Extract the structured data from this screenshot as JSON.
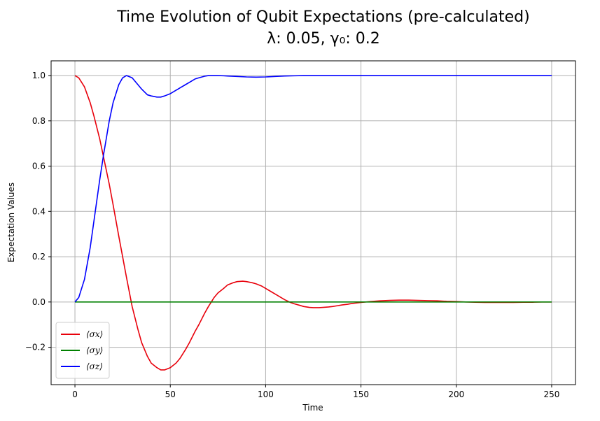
{
  "chart_data": {
    "type": "line",
    "title": "Time Evolution of Qubit Expectations (pre-calculated)",
    "subtitle": "λ: 0.05, γ₀: 0.2",
    "xlabel": "Time",
    "ylabel": "Expectation Values",
    "xlim": [
      -12.5,
      262.5
    ],
    "ylim": [
      -0.365,
      1.065
    ],
    "xticks": [
      0,
      50,
      100,
      150,
      200,
      250
    ],
    "xtick_labels": [
      "0",
      "50",
      "100",
      "150",
      "200",
      "250"
    ],
    "yticks": [
      -0.2,
      0.0,
      0.2,
      0.4,
      0.6,
      0.8,
      1.0
    ],
    "ytick_labels": [
      "−0.2",
      "0.0",
      "0.2",
      "0.4",
      "0.6",
      "0.8",
      "1.0"
    ],
    "grid": true,
    "legend_position": "lower-left",
    "series": [
      {
        "name": "⟨σx⟩",
        "color": "#e8000b",
        "x": [
          0,
          2,
          5,
          8,
          10,
          13,
          15,
          18,
          20,
          23,
          25,
          27,
          30,
          33,
          35,
          38,
          40,
          43,
          45,
          47,
          50,
          53,
          55,
          58,
          60,
          63,
          65,
          68,
          70,
          73,
          75,
          78,
          80,
          83,
          85,
          88,
          90,
          93,
          95,
          98,
          100,
          103,
          105,
          108,
          110,
          113,
          115,
          118,
          120,
          123,
          125,
          128,
          130,
          133,
          135,
          138,
          140,
          143,
          145,
          148,
          150,
          155,
          160,
          165,
          170,
          175,
          180,
          185,
          190,
          195,
          200,
          205,
          210,
          215,
          220,
          225,
          230,
          235,
          240,
          245,
          250
        ],
        "y": [
          1.0,
          0.99,
          0.95,
          0.88,
          0.82,
          0.72,
          0.64,
          0.52,
          0.43,
          0.29,
          0.2,
          0.11,
          -0.02,
          -0.12,
          -0.18,
          -0.24,
          -0.27,
          -0.29,
          -0.3,
          -0.3,
          -0.29,
          -0.27,
          -0.25,
          -0.21,
          -0.18,
          -0.13,
          -0.1,
          -0.05,
          -0.02,
          0.02,
          0.04,
          0.06,
          0.075,
          0.085,
          0.09,
          0.092,
          0.09,
          0.085,
          0.08,
          0.07,
          0.06,
          0.045,
          0.035,
          0.02,
          0.01,
          -0.002,
          -0.008,
          -0.015,
          -0.02,
          -0.024,
          -0.025,
          -0.025,
          -0.024,
          -0.022,
          -0.02,
          -0.016,
          -0.013,
          -0.01,
          -0.007,
          -0.004,
          -0.002,
          0.002,
          0.005,
          0.007,
          0.008,
          0.008,
          0.007,
          0.006,
          0.005,
          0.003,
          0.002,
          0.0,
          -0.001,
          -0.002,
          -0.002,
          -0.002,
          -0.002,
          -0.001,
          -0.001,
          0.0,
          0.0
        ]
      },
      {
        "name": "⟨σy⟩",
        "color": "#008000",
        "x": [
          0,
          250
        ],
        "y": [
          0.0,
          0.0
        ]
      },
      {
        "name": "⟨σz⟩",
        "color": "#0000ff",
        "x": [
          0,
          2,
          5,
          8,
          10,
          13,
          15,
          18,
          20,
          23,
          25,
          27,
          30,
          33,
          35,
          38,
          40,
          43,
          45,
          47,
          50,
          53,
          55,
          58,
          60,
          63,
          65,
          68,
          70,
          73,
          75,
          78,
          80,
          85,
          90,
          95,
          100,
          105,
          110,
          115,
          120,
          130,
          140,
          150,
          175,
          200,
          225,
          250
        ],
        "y": [
          0.0,
          0.02,
          0.1,
          0.24,
          0.36,
          0.54,
          0.65,
          0.8,
          0.88,
          0.96,
          0.99,
          1.0,
          0.99,
          0.96,
          0.94,
          0.915,
          0.91,
          0.905,
          0.905,
          0.91,
          0.92,
          0.935,
          0.945,
          0.96,
          0.97,
          0.985,
          0.99,
          0.997,
          1.0,
          1.0,
          1.0,
          0.999,
          0.998,
          0.996,
          0.994,
          0.993,
          0.994,
          0.996,
          0.998,
          0.999,
          1.0,
          1.0,
          1.0,
          1.0,
          1.0,
          1.0,
          1.0,
          1.0
        ]
      }
    ]
  }
}
